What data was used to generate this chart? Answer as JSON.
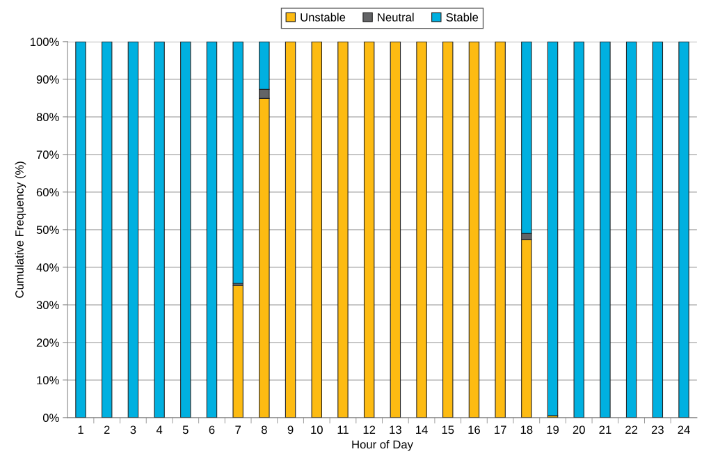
{
  "chart_data": {
    "type": "bar",
    "stacked": true,
    "xlabel": "Hour of Day",
    "ylabel": "Cumulative Frequency (%)",
    "categories": [
      "1",
      "2",
      "3",
      "4",
      "5",
      "6",
      "7",
      "8",
      "9",
      "10",
      "11",
      "12",
      "13",
      "14",
      "15",
      "16",
      "17",
      "18",
      "19",
      "20",
      "21",
      "22",
      "23",
      "24"
    ],
    "series": [
      {
        "name": "Unstable",
        "color": "#fdbb12",
        "values": [
          0,
          0,
          0,
          0,
          0,
          0,
          35.1,
          84.9,
          100,
          100,
          100,
          100,
          100,
          100,
          100,
          100,
          100,
          47.3,
          0.5,
          0,
          0,
          0,
          0,
          0
        ]
      },
      {
        "name": "Neutral",
        "color": "#636466",
        "values": [
          0,
          0,
          0,
          0,
          0,
          0,
          0.6,
          2.4,
          0,
          0,
          0,
          0,
          0,
          0,
          0,
          0,
          0,
          1.7,
          0,
          0,
          0,
          0,
          0,
          0
        ]
      },
      {
        "name": "Stable",
        "color": "#00b0e0",
        "values": [
          100,
          100,
          100,
          100,
          100,
          100,
          64.3,
          12.7,
          0,
          0,
          0,
          0,
          0,
          0,
          0,
          0,
          0,
          51.0,
          99.5,
          100,
          100,
          100,
          100,
          100
        ]
      }
    ],
    "ylim": [
      0,
      100
    ],
    "yticks": [
      {
        "value": 0,
        "label": "0%"
      },
      {
        "value": 10,
        "label": "10%"
      },
      {
        "value": 20,
        "label": "20%"
      },
      {
        "value": 30,
        "label": "30%"
      },
      {
        "value": 40,
        "label": "40%"
      },
      {
        "value": 50,
        "label": "50%"
      },
      {
        "value": 60,
        "label": "60%"
      },
      {
        "value": 70,
        "label": "70%"
      },
      {
        "value": 80,
        "label": "80%"
      },
      {
        "value": 90,
        "label": "90%"
      },
      {
        "value": 100,
        "label": "100%"
      }
    ],
    "grid": "y",
    "legend": "top"
  }
}
